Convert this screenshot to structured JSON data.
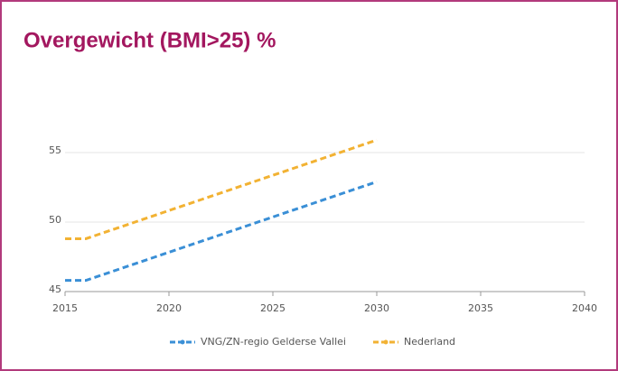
{
  "chart_data": {
    "type": "line",
    "title": "Overgewicht (BMI>25) %",
    "x": [
      2015,
      2016,
      2030
    ],
    "series": [
      {
        "name": "VNG/ZN-regio Gelderse Vallei",
        "color": "#3a8fd6",
        "values": [
          45.8,
          45.8,
          52.9
        ]
      },
      {
        "name": "Nederland",
        "color": "#f2b233",
        "values": [
          48.8,
          48.8,
          55.9
        ]
      }
    ],
    "xlim": [
      2015,
      2040
    ],
    "xticks": [
      2015,
      2020,
      2025,
      2030,
      2035,
      2040
    ],
    "ylim": [
      45,
      60
    ],
    "yticks": [
      45,
      50,
      55
    ],
    "grid": true,
    "legend": "bottom"
  }
}
